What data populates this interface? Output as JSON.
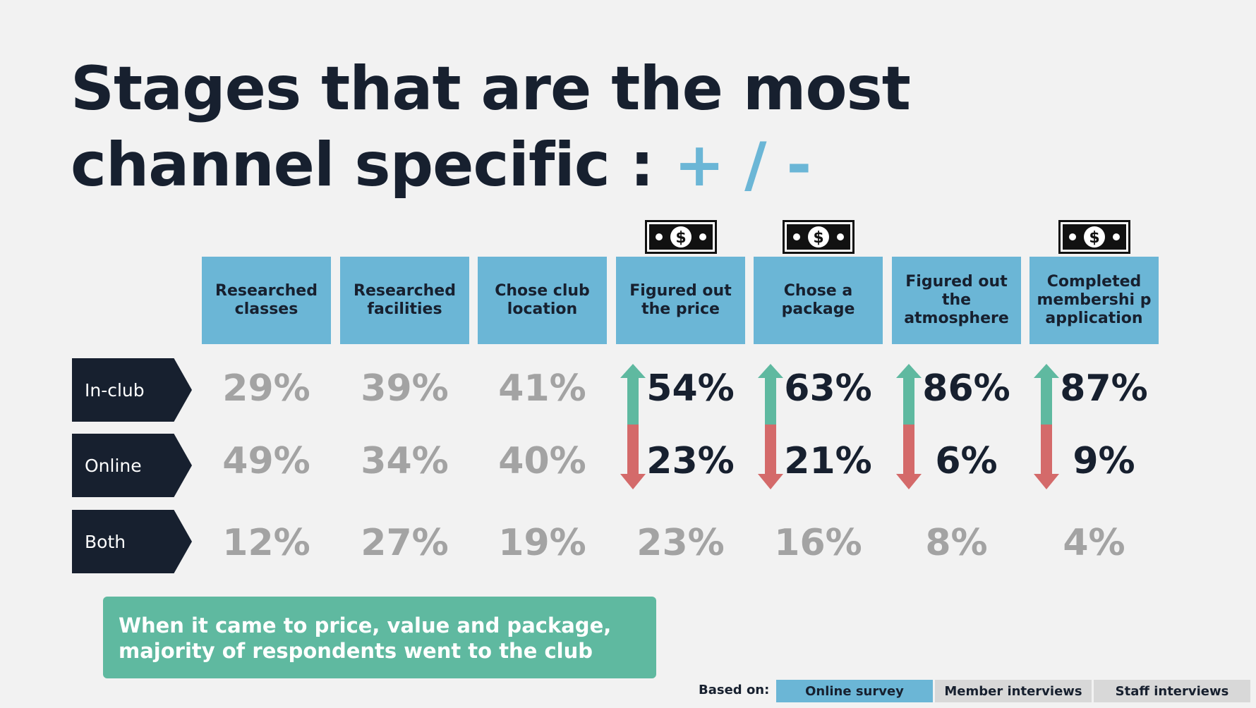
{
  "title": {
    "line1": "Stages that are the most",
    "line2_prefix": "channel specific : ",
    "line2_accent": "+ / -"
  },
  "chart_data": {
    "type": "table",
    "title": "Stages that are the most channel specific : + / -",
    "columns": [
      {
        "label": "Researched classes",
        "money_icon": false,
        "highlight": false
      },
      {
        "label": "Researched facilities",
        "money_icon": false,
        "highlight": false
      },
      {
        "label": "Chose club location",
        "money_icon": false,
        "highlight": false
      },
      {
        "label": "Figured out the price",
        "money_icon": true,
        "highlight": true
      },
      {
        "label": "Chose a package",
        "money_icon": true,
        "highlight": true
      },
      {
        "label": "Figured out the atmosphere",
        "money_icon": false,
        "highlight": true
      },
      {
        "label": "Completed membershi p application",
        "money_icon": true,
        "highlight": true
      }
    ],
    "rows": [
      {
        "label": "In-club",
        "values": [
          "29%",
          "39%",
          "41%",
          "54%",
          "63%",
          "86%",
          "87%"
        ]
      },
      {
        "label": "Online",
        "values": [
          "49%",
          "34%",
          "40%",
          "23%",
          "21%",
          "6%",
          "9%"
        ]
      },
      {
        "label": "Both",
        "values": [
          "12%",
          "27%",
          "19%",
          "23%",
          "16%",
          "8%",
          "4%"
        ]
      }
    ]
  },
  "callout": {
    "text": "When it came to price, value and package, majority of respondents went to the club"
  },
  "footer": {
    "based_on_label": "Based on:",
    "sources": [
      {
        "label": "Online survey",
        "active": true
      },
      {
        "label": "Member interviews",
        "active": false
      },
      {
        "label": "Staff interviews",
        "active": false
      }
    ]
  },
  "colors": {
    "navy": "#17202f",
    "blue": "#6bb6d6",
    "green": "#5fb9a0",
    "red": "#d46a6a",
    "muted": "#a3a3a3",
    "source_active": "#6bb6d6",
    "source_inactive": "#d8d8d8"
  },
  "icons": {
    "money": "money-bill-icon",
    "up": "arrow-up-icon",
    "down": "arrow-down-icon"
  }
}
